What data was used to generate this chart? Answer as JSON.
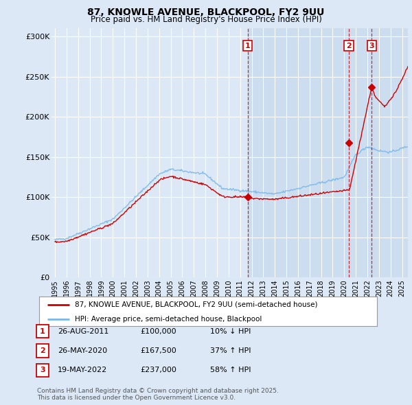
{
  "title_line1": "87, KNOWLE AVENUE, BLACKPOOL, FY2 9UU",
  "title_line2": "Price paid vs. HM Land Registry's House Price Index (HPI)",
  "background_color": "#dce8f5",
  "plot_bg_color_left": "#dce8f5",
  "plot_bg_color_right": "#ccddf0",
  "hpi_color": "#7ab8e8",
  "price_color": "#cc0000",
  "vline_color": "#cc0000",
  "ylim": [
    0,
    310000
  ],
  "yticks": [
    0,
    50000,
    100000,
    150000,
    200000,
    250000,
    300000
  ],
  "ytick_labels": [
    "£0",
    "£50K",
    "£100K",
    "£150K",
    "£200K",
    "£250K",
    "£300K"
  ],
  "transactions": [
    {
      "label": "1",
      "date_num": 2011.65,
      "price": 100000,
      "pct": "10%",
      "dir": "↓",
      "date_str": "26-AUG-2011"
    },
    {
      "label": "2",
      "date_num": 2020.4,
      "price": 167500,
      "pct": "37%",
      "dir": "↑",
      "date_str": "26-MAY-2020"
    },
    {
      "label": "3",
      "date_num": 2022.38,
      "price": 237000,
      "pct": "58%",
      "dir": "↑",
      "date_str": "19-MAY-2022"
    }
  ],
  "legend_label_price": "87, KNOWLE AVENUE, BLACKPOOL, FY2 9UU (semi-detached house)",
  "legend_label_hpi": "HPI: Average price, semi-detached house, Blackpool",
  "footnote": "Contains HM Land Registry data © Crown copyright and database right 2025.\nThis data is licensed under the Open Government Licence v3.0.",
  "table_rows": [
    [
      "1",
      "26-AUG-2011",
      "£100,000",
      "10% ↓ HPI"
    ],
    [
      "2",
      "26-MAY-2020",
      "£167,500",
      "37% ↑ HPI"
    ],
    [
      "3",
      "19-MAY-2022",
      "£237,000",
      "58% ↑ HPI"
    ]
  ],
  "xmin": 1995,
  "xmax": 2025.5
}
